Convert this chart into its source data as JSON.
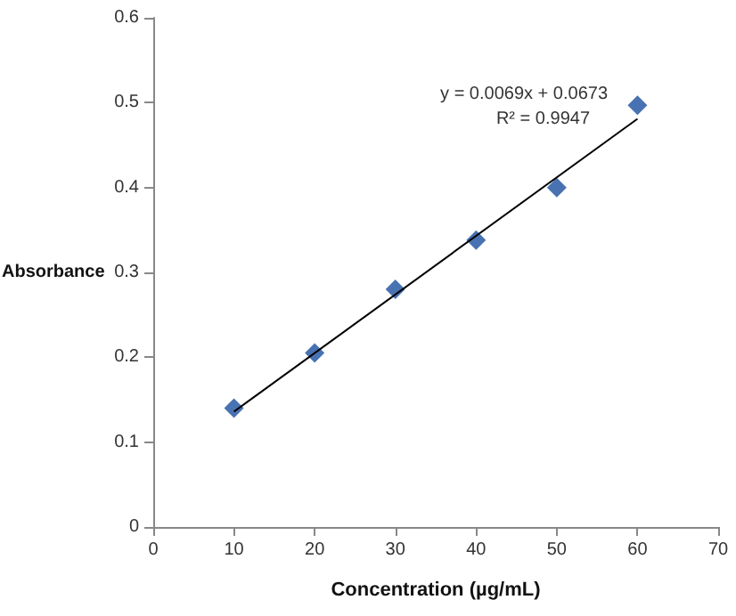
{
  "chart_data": {
    "type": "scatter",
    "xlabel": "Concentration (µg/mL)",
    "ylabel": "Absorbance",
    "annotations": [
      "y = 0.0069x + 0.0673",
      "R² = 0.9947"
    ],
    "x": [
      10,
      20,
      30,
      40,
      50,
      60
    ],
    "marker": "diamond",
    "grid": false,
    "series": [
      {
        "color": "#1a4f9e",
        "values": [
          0.14,
          0.205,
          0.28,
          0.338,
          0.4,
          0.497
        ]
      },
      {
        "type": "line",
        "color": "#000000",
        "x": [
          10,
          60
        ],
        "values": [
          0.136,
          0.481
        ],
        "marker": "none",
        "line_style": "solid"
      }
    ],
    "xlim": [
      0,
      70
    ],
    "xticks": [
      0,
      10,
      20,
      30,
      40,
      50,
      60,
      70
    ],
    "ylim": [
      0,
      0.6
    ],
    "yticks": [
      0,
      0.1,
      0.2,
      0.3,
      0.4,
      0.5,
      0.6
    ]
  }
}
